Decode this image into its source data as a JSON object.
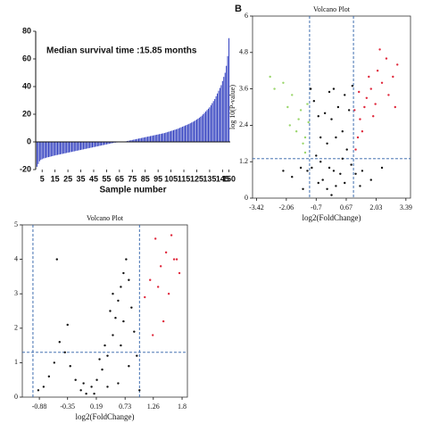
{
  "chart_data": [
    {
      "type": "bar",
      "annotation": "Median survival time :15.85 months",
      "x_label": "Sample number",
      "color": "#2f3dbf",
      "xlim": [
        0,
        151
      ],
      "xticks": [
        5,
        15,
        25,
        35,
        45,
        55,
        65,
        75,
        85,
        95,
        105,
        115,
        125,
        135,
        145,
        150
      ],
      "ylim": [
        -20,
        80
      ],
      "yticks": [
        -20,
        0,
        20,
        40,
        60,
        80
      ],
      "x": [
        1,
        2,
        3,
        4,
        5,
        6,
        7,
        8,
        9,
        10,
        11,
        12,
        13,
        14,
        15,
        16,
        17,
        18,
        19,
        20,
        21,
        22,
        23,
        24,
        25,
        26,
        27,
        28,
        29,
        30,
        31,
        32,
        33,
        34,
        35,
        36,
        37,
        38,
        39,
        40,
        41,
        42,
        43,
        44,
        45,
        46,
        47,
        48,
        49,
        50,
        51,
        52,
        53,
        54,
        55,
        56,
        57,
        58,
        59,
        60,
        61,
        62,
        63,
        64,
        65,
        66,
        67,
        68,
        69,
        70,
        71,
        72,
        73,
        74,
        75,
        76,
        77,
        78,
        79,
        80,
        81,
        82,
        83,
        84,
        85,
        86,
        87,
        88,
        89,
        90,
        91,
        92,
        93,
        94,
        95,
        96,
        97,
        98,
        99,
        100,
        101,
        102,
        103,
        104,
        105,
        106,
        107,
        108,
        109,
        110,
        111,
        112,
        113,
        114,
        115,
        116,
        117,
        118,
        119,
        120,
        121,
        122,
        123,
        124,
        125,
        126,
        127,
        128,
        129,
        130,
        131,
        132,
        133,
        134,
        135,
        136,
        137,
        138,
        139,
        140,
        141,
        142,
        143,
        144,
        145,
        146,
        147,
        148,
        149,
        150
      ],
      "values": [
        -18,
        -16,
        -14,
        -13,
        -12.5,
        -12,
        -11.8,
        -11.5,
        -11.2,
        -11,
        -10.8,
        -10.5,
        -10.3,
        -10,
        -9.8,
        -9.6,
        -9.4,
        -9.2,
        -9,
        -8.8,
        -8.6,
        -8.4,
        -8.2,
        -8,
        -7.8,
        -7.6,
        -7.4,
        -7.2,
        -7,
        -6.8,
        -6.6,
        -6.4,
        -6.2,
        -6,
        -5.8,
        -5.6,
        -5.4,
        -5.2,
        -5,
        -4.8,
        -4.6,
        -4.4,
        -4.2,
        -4,
        -3.8,
        -3.6,
        -3.4,
        -3.2,
        -3,
        -2.8,
        -2.6,
        -2.4,
        -2.2,
        -2,
        -1.8,
        -1.6,
        -1.4,
        -1.2,
        -1,
        -0.8,
        -0.6,
        -0.5,
        -0.4,
        -0.3,
        -0.2,
        -0.1,
        0.1,
        0.2,
        0.3,
        0.4,
        0.6,
        0.8,
        1,
        1.2,
        1.4,
        1.6,
        1.8,
        2,
        2.2,
        2.4,
        2.6,
        2.8,
        3,
        3.2,
        3.4,
        3.6,
        3.8,
        4,
        4.2,
        4.4,
        4.6,
        4.8,
        5,
        5.2,
        5.4,
        5.6,
        5.8,
        6,
        6.2,
        6.4,
        6.7,
        7,
        7.3,
        7.6,
        7.9,
        8.2,
        8.5,
        8.8,
        9.1,
        9.4,
        9.8,
        10.2,
        10.6,
        11,
        11.4,
        11.8,
        12.2,
        12.6,
        13,
        13.5,
        14,
        14.5,
        15,
        15.6,
        16.2,
        16.8,
        17.5,
        18.2,
        19,
        20,
        21,
        22,
        23,
        24,
        25,
        26.5,
        28,
        29.5,
        31,
        33,
        35,
        37,
        39,
        41,
        44,
        47,
        50,
        55,
        62,
        75
      ]
    },
    {
      "type": "scatter",
      "panel_label": "B",
      "title": "Volcano Plot",
      "x_label": "log2(FoldChange)",
      "y_label": "log 10(P-value)",
      "xlim": [
        -3.6,
        3.6
      ],
      "xticks": [
        -3.42,
        -2.06,
        -0.7,
        0.67,
        2.03,
        3.39
      ],
      "ylim": [
        0,
        6
      ],
      "yticks": [
        0,
        1.2,
        2.4,
        3.6,
        4.8,
        6
      ],
      "vlines": [
        -1,
        1
      ],
      "hline": 1.3,
      "line_color": "#2b5fa8",
      "series": [
        {
          "color": "#111111",
          "x": [
            -0.9,
            -0.7,
            -0.5,
            -0.3,
            -0.1,
            0.1,
            0.3,
            0.5,
            0.7,
            0.9,
            -0.8,
            -0.6,
            0.6,
            0.8,
            -0.4,
            -0.2,
            0,
            0.2,
            0.4,
            -1.1,
            1.1,
            -1.4,
            1.4,
            -1.8,
            1.8,
            -0.95,
            0.95,
            -0.5,
            0.5,
            -0.2,
            0.2,
            0,
            -2.2,
            2.3,
            -0.1,
            0.1,
            -0.6,
            0.6,
            -1.3,
            1.3
          ],
          "values": [
            1.0,
            1.4,
            2.0,
            2.8,
            3.5,
            3.6,
            3.0,
            2.2,
            1.6,
            1.1,
            3.2,
            2.7,
            3.4,
            2.9,
            0.6,
            0.3,
            0.1,
            0.4,
            0.8,
            0.9,
            0.8,
            1.0,
            0.9,
            0.7,
            0.6,
            3.6,
            3.7,
            1.2,
            1.3,
            1.8,
            2.0,
            2.6,
            0.9,
            1.0,
            1.0,
            0.9,
            0.5,
            0.5,
            0.3,
            0.4
          ]
        },
        {
          "color": "#9ad66b",
          "x": [
            -1.2,
            -1.5,
            -1.1,
            -1.8,
            -2.2,
            -1.3,
            -1.6,
            -2.6,
            -1.4,
            -1.9,
            -1.2,
            -2.0,
            -2.8,
            -1.05
          ],
          "values": [
            2.0,
            2.6,
            3.1,
            3.4,
            3.8,
            1.8,
            2.2,
            3.6,
            2.9,
            2.4,
            1.5,
            3.0,
            4.0,
            2.5
          ]
        },
        {
          "color": "#e0283c",
          "x": [
            1.2,
            1.5,
            1.8,
            2.1,
            2.5,
            1.3,
            1.6,
            2.0,
            2.3,
            1.1,
            2.8,
            1.4,
            1.9,
            2.6,
            3.0,
            1.7,
            2.2,
            1.25,
            2.9,
            1.05
          ],
          "values": [
            2.0,
            3.0,
            3.6,
            4.2,
            4.6,
            2.6,
            3.3,
            3.1,
            3.8,
            1.6,
            4.0,
            2.2,
            2.7,
            3.4,
            4.4,
            4.0,
            4.9,
            3.5,
            3.0,
            2.9
          ]
        }
      ]
    },
    {
      "type": "scatter",
      "title": "Volcano Plot",
      "x_label": "log2(FoldChange)",
      "xlim": [
        -1.2,
        1.9
      ],
      "xticks": [
        -0.88,
        -0.35,
        0.19,
        0.73,
        1.26,
        1.8
      ],
      "ylim": [
        0,
        5
      ],
      "yticks": [
        0,
        1,
        2,
        3,
        4,
        5
      ],
      "vlines": [
        -1,
        1
      ],
      "hline": 1.3,
      "line_color": "#2b5fa8",
      "series": [
        {
          "color": "#111111",
          "x": [
            0,
            0.1,
            -0.1,
            0.2,
            0.3,
            0.4,
            0.5,
            0.55,
            0.6,
            0.65,
            0.7,
            0.75,
            0.8,
            0.85,
            0.9,
            0.95,
            0.45,
            0.35,
            -0.2,
            -0.3,
            -0.4,
            -0.5,
            -0.6,
            -0.7,
            -0.35,
            -0.55,
            -0.8,
            0.15,
            -0.05,
            0.25,
            0.6,
            0.8,
            1.0,
            -0.9,
            0.7,
            0.65,
            0.5,
            0.4
          ],
          "values": [
            0.1,
            0.3,
            0.2,
            0.5,
            0.8,
            1.2,
            1.8,
            2.3,
            2.8,
            3.2,
            3.6,
            4.0,
            3.4,
            2.6,
            1.9,
            1.2,
            2.5,
            1.5,
            0.5,
            0.9,
            1.3,
            1.6,
            1.0,
            0.6,
            2.1,
            4.0,
            0.3,
            0.1,
            0.4,
            1.1,
            0.4,
            0.9,
            0.2,
            0.2,
            2.2,
            1.5,
            3.0,
            0.3
          ]
        },
        {
          "color": "#e0283c",
          "x": [
            1.1,
            1.2,
            1.3,
            1.4,
            1.5,
            1.55,
            1.65,
            1.7,
            1.35,
            1.45,
            1.6,
            1.25,
            1.75
          ],
          "values": [
            2.9,
            3.4,
            4.6,
            3.8,
            4.2,
            3.0,
            4.0,
            4.0,
            3.2,
            2.2,
            4.7,
            1.8,
            3.6
          ]
        }
      ]
    }
  ]
}
